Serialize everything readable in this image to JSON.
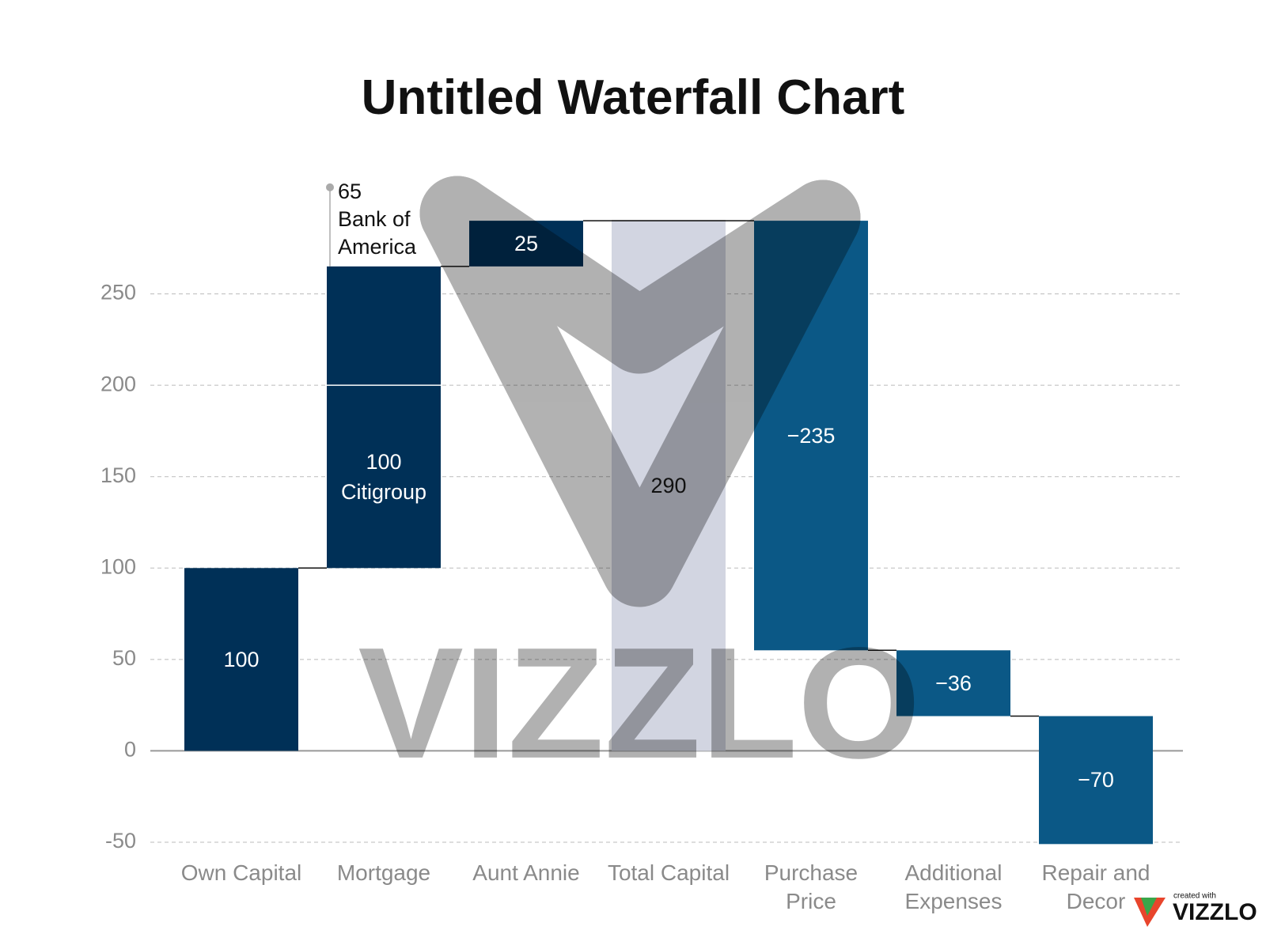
{
  "chart_data": {
    "type": "waterfall",
    "title": "Untitled Waterfall Chart",
    "bars": [
      {
        "category": "Own Capital",
        "color": "#003057",
        "segments": [
          {
            "value": 100
          }
        ]
      },
      {
        "category": "Mortgage",
        "color": "#003057",
        "segments": [
          {
            "value": 100,
            "name": "Citigroup"
          },
          {
            "value": 65,
            "name": "Bank of America",
            "label_position": "outside"
          }
        ]
      },
      {
        "category": "Aunt Annie",
        "color": "#003057",
        "segments": [
          {
            "value": 25
          }
        ]
      },
      {
        "category": "Total Capital",
        "kind": "total",
        "color": "#d2d5e1",
        "segments": [
          {
            "value": 290
          }
        ]
      },
      {
        "category": "Purchase Price",
        "color": "#0b5886",
        "segments": [
          {
            "value": -235,
            "value_label": "−235"
          }
        ]
      },
      {
        "category": "Additional Expenses",
        "color": "#0b5886",
        "segments": [
          {
            "value": -36,
            "value_label": "−36"
          }
        ]
      },
      {
        "category": "Repair and Decor",
        "color": "#0b5886",
        "segments": [
          {
            "value": -70,
            "value_label": "−70"
          }
        ]
      }
    ],
    "ylim": [
      -50,
      300
    ],
    "yticks": [
      -50,
      0,
      50,
      100,
      150,
      200,
      250
    ],
    "grid": true
  },
  "watermark": "VIZZLO",
  "credit": {
    "prefix": "created with",
    "brand": "VIZZLO"
  }
}
